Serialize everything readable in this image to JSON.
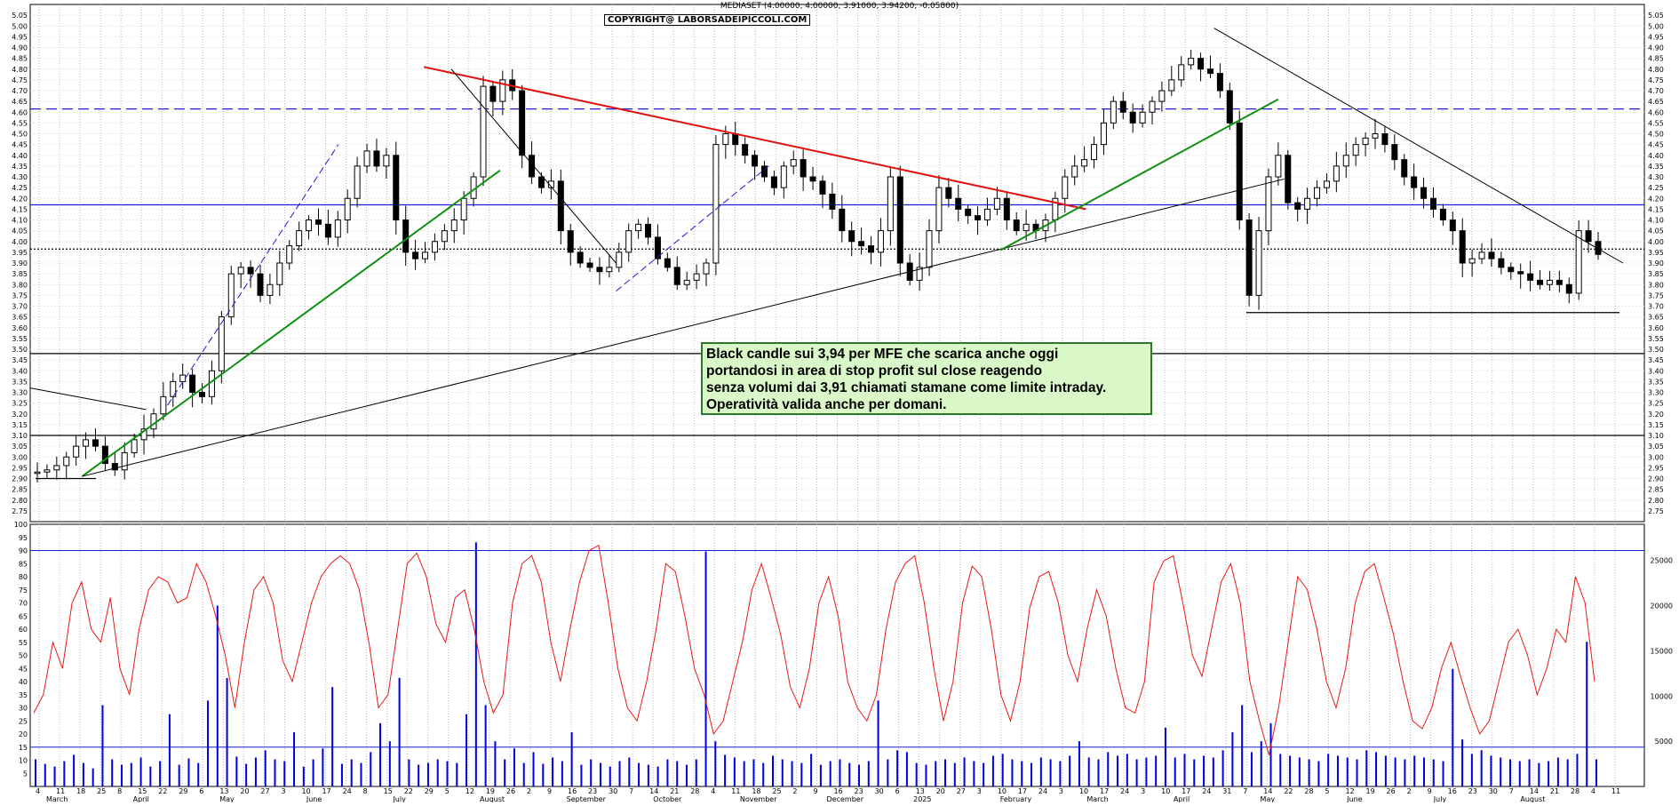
{
  "header": {
    "title": "MEDIASET (4.00000, 4.00000, 3.91000, 3.94200, -0.05800)",
    "copyright": "COPYRIGHT@ LABORSADEIPICCOLI.COM"
  },
  "comment": {
    "lines": [
      "Black candle sui 3,94 per MFE che scarica anche oggi",
      "portandosi in area di stop profit sul close reagendo",
      "senza volumi dai 3,91 chiamati stamane come limite intraday.",
      "Operatività valida anche per domani."
    ]
  },
  "colors": {
    "bullish_trendline": "#109010",
    "bearish_trendline": "#e01010",
    "support_line": "#1a1ad8",
    "indicator_line": "#e81818",
    "volume_bar": "#0000e0",
    "comment_bg": "#d9f7c7"
  },
  "chart_data": [
    {
      "type": "candlestick",
      "title": "MEDIASET",
      "ylim": [
        2.7,
        5.1
      ],
      "price_ticks": [
        "2.75",
        "2.80",
        "2.85",
        "2.90",
        "2.95",
        "3.00",
        "3.05",
        "3.10",
        "3.15",
        "3.20",
        "3.25",
        "3.30",
        "3.35",
        "3.40",
        "3.45",
        "3.50",
        "3.55",
        "3.60",
        "3.65",
        "3.70",
        "3.75",
        "3.80",
        "3.85",
        "3.90",
        "3.95",
        "4.00",
        "4.05",
        "4.10",
        "4.15",
        "4.20",
        "4.25",
        "4.30",
        "4.35",
        "4.40",
        "4.45",
        "4.50",
        "4.55",
        "4.60",
        "4.65",
        "4.70",
        "4.75",
        "4.80",
        "4.85",
        "4.90",
        "4.95",
        "5.00",
        "5.05"
      ],
      "x_date_ticks": [
        "4",
        "11",
        "18",
        "25",
        "8",
        "15",
        "22",
        "29",
        "6",
        "13",
        "20",
        "27",
        "3",
        "10",
        "17",
        "24",
        "8",
        "15",
        "22",
        "29",
        "5",
        "12",
        "19",
        "26",
        "2",
        "9",
        "16",
        "23",
        "30",
        "7",
        "14",
        "21",
        "28",
        "4",
        "11",
        "18",
        "25",
        "2",
        "9",
        "16",
        "23",
        "30",
        "6",
        "13",
        "20",
        "27",
        "3",
        "10",
        "17",
        "24",
        "3",
        "10",
        "17",
        "24",
        "3",
        "10",
        "17",
        "24",
        "31",
        "7",
        "14",
        "22",
        "28",
        "5",
        "12",
        "19",
        "26",
        "2",
        "9",
        "16",
        "23",
        "30",
        "7",
        "14",
        "21",
        "28",
        "4",
        "11"
      ],
      "x_months": [
        "March",
        "April",
        "May",
        "June",
        "July",
        "August",
        "September",
        "October",
        "November",
        "December",
        "2025",
        "February",
        "March",
        "April",
        "May",
        "June",
        "July",
        "August"
      ],
      "horizontal_levels": [
        {
          "value": 4.615,
          "style": "dashed",
          "color": "#1a1ad8"
        },
        {
          "value": 4.17,
          "style": "solid",
          "color": "#1a1ad8"
        },
        {
          "value": 3.965,
          "style": "dotted",
          "color": "#000000"
        },
        {
          "value": 3.48,
          "style": "solid",
          "color": "#000000"
        },
        {
          "value": 3.1,
          "style": "solid",
          "color": "#000000"
        },
        {
          "value": 2.9,
          "style": "solid",
          "color": "#000000"
        },
        {
          "value": 3.67,
          "style": "solid",
          "color": "#000000"
        }
      ],
      "trendlines": [
        {
          "color": "#e01010",
          "from": [
            "Jul 8 2024",
            4.81
          ],
          "to": [
            "Feb 10 2025",
            4.15
          ]
        },
        {
          "color": "#109010",
          "from": [
            "Mar 18 2024",
            2.91
          ],
          "to": [
            "Aug 2 2024",
            4.33
          ]
        },
        {
          "color": "#000000",
          "from": [
            "Mar 18 2024",
            2.91
          ],
          "to": [
            "Apr 16 2025",
            4.29
          ]
        },
        {
          "color": "#000000",
          "from": [
            "Mar 24 2025",
            4.99
          ],
          "to": [
            "Aug 5 2025",
            3.9
          ]
        },
        {
          "color": "#000000",
          "from": [
            "Jul 17 2024",
            4.8
          ],
          "to": [
            "Sep 9 2024",
            3.9
          ]
        },
        {
          "color": "#109010",
          "from": [
            "Jan 13 2025",
            3.96
          ],
          "to": [
            "Apr 14 2025",
            4.66
          ]
        },
        {
          "color": "#000000",
          "from": [
            "Mar 1 2024",
            3.32
          ],
          "to": [
            "Apr 8 2024",
            3.22
          ]
        }
      ],
      "close_series": [
        2.93,
        2.94,
        2.96,
        3.0,
        3.05,
        3.08,
        3.05,
        2.97,
        2.94,
        3.02,
        3.08,
        3.13,
        3.2,
        3.28,
        3.35,
        3.38,
        3.3,
        3.28,
        3.4,
        3.65,
        3.85,
        3.88,
        3.85,
        3.75,
        3.8,
        3.9,
        3.98,
        4.05,
        4.1,
        4.08,
        4.02,
        4.1,
        4.2,
        4.35,
        4.42,
        4.35,
        4.4,
        4.1,
        3.95,
        3.92,
        3.95,
        4.0,
        4.05,
        4.1,
        4.2,
        4.3,
        4.72,
        4.65,
        4.75,
        4.7,
        4.4,
        4.3,
        4.25,
        4.28,
        4.05,
        3.95,
        3.9,
        3.88,
        3.86,
        3.88,
        3.95,
        4.05,
        4.08,
        4.02,
        3.92,
        3.88,
        3.8,
        3.82,
        3.85,
        3.9,
        4.45,
        4.5,
        4.45,
        4.4,
        4.35,
        4.3,
        4.25,
        4.35,
        4.38,
        4.3,
        4.28,
        4.22,
        4.15,
        4.05,
        4.0,
        3.98,
        3.95,
        4.05,
        4.3,
        3.9,
        3.82,
        3.88,
        4.05,
        4.25,
        4.2,
        4.15,
        4.12,
        4.1,
        4.15,
        4.2,
        4.1,
        4.05,
        4.08,
        4.05,
        4.1,
        4.2,
        4.3,
        4.35,
        4.38,
        4.45,
        4.55,
        4.65,
        4.6,
        4.55,
        4.6,
        4.65,
        4.7,
        4.75,
        4.82,
        4.85,
        4.8,
        4.78,
        4.7,
        4.55,
        4.1,
        3.75,
        4.05,
        4.3,
        4.4,
        4.18,
        4.15,
        4.2,
        4.25,
        4.28,
        4.35,
        4.4,
        4.45,
        4.48,
        4.5,
        4.45,
        4.38,
        4.3,
        4.25,
        4.2,
        4.15,
        4.1,
        4.05,
        3.9,
        3.92,
        3.95,
        3.92,
        3.88,
        3.86,
        3.85,
        3.82,
        3.8,
        3.82,
        3.8,
        3.76,
        4.05,
        4.0,
        3.94
      ]
    },
    {
      "type": "line",
      "title": "oscillator",
      "ylim": [
        0,
        100
      ],
      "y_ticks": [
        "5",
        "10",
        "15",
        "20",
        "25",
        "30",
        "35",
        "40",
        "45",
        "50",
        "55",
        "60",
        "65",
        "70",
        "75",
        "80",
        "85",
        "90",
        "95",
        "100"
      ],
      "reference_levels": [
        90,
        15
      ],
      "values": [
        28,
        35,
        55,
        45,
        70,
        78,
        60,
        55,
        72,
        45,
        35,
        60,
        75,
        80,
        78,
        70,
        72,
        85,
        78,
        65,
        50,
        30,
        55,
        75,
        80,
        70,
        48,
        40,
        55,
        70,
        80,
        85,
        88,
        85,
        75,
        55,
        30,
        35,
        60,
        85,
        89,
        80,
        62,
        55,
        72,
        75,
        60,
        40,
        28,
        35,
        70,
        85,
        88,
        78,
        55,
        40,
        60,
        78,
        90,
        92,
        70,
        45,
        30,
        25,
        40,
        60,
        85,
        82,
        65,
        45,
        35,
        20,
        25,
        40,
        55,
        75,
        85,
        72,
        58,
        38,
        30,
        45,
        70,
        80,
        65,
        40,
        30,
        25,
        35,
        60,
        78,
        85,
        88,
        70,
        45,
        25,
        40,
        70,
        84,
        80,
        60,
        35,
        25,
        40,
        68,
        80,
        82,
        70,
        50,
        40,
        60,
        75,
        65,
        45,
        30,
        28,
        40,
        78,
        86,
        88,
        70,
        50,
        42,
        60,
        78,
        85,
        70,
        40,
        25,
        12,
        30,
        55,
        80,
        75,
        60,
        40,
        30,
        45,
        70,
        82,
        85,
        72,
        58,
        40,
        25,
        22,
        30,
        45,
        55,
        42,
        30,
        20,
        25,
        40,
        55,
        60,
        50,
        35,
        45,
        60,
        55,
        80,
        70,
        40
      ]
    },
    {
      "type": "bar",
      "title": "volume",
      "ylim": [
        0,
        29000
      ],
      "y_ticks": [
        "5000",
        "10000",
        "15000",
        "20000",
        "25000"
      ],
      "reference_level": 4500,
      "values": [
        3000,
        2500,
        2200,
        2800,
        3500,
        2600,
        2000,
        9000,
        3000,
        2400,
        2600,
        3200,
        2200,
        2800,
        8000,
        2400,
        3100,
        2600,
        9500,
        20000,
        12000,
        3300,
        2500,
        3200,
        4000,
        3000,
        2800,
        6000,
        2200,
        3000,
        4200,
        11000,
        2500,
        3000,
        2600,
        3800,
        7000,
        5000,
        12000,
        3000,
        2400,
        2600,
        3000,
        2800,
        2600,
        8000,
        27000,
        9000,
        5000,
        3000,
        4200,
        2600,
        3800,
        2500,
        3200,
        2800,
        6000,
        2400,
        3000,
        2600,
        2200,
        2800,
        3200,
        2600,
        2400,
        2200,
        3000,
        2800,
        2400,
        3000,
        26000,
        5000,
        3500,
        3200,
        2800,
        3000,
        2600,
        3400,
        3000,
        2800,
        2600,
        3600,
        2400,
        2800,
        3000,
        2600,
        2400,
        2800,
        9500,
        3000,
        4000,
        3800,
        2600,
        2400,
        2800,
        3000,
        2600,
        3200,
        2800,
        2600,
        3400,
        3600,
        3000,
        2800,
        2600,
        3200,
        3000,
        2800,
        3400,
        5000,
        3200,
        3000,
        3800,
        3400,
        3600,
        3000,
        3200,
        3400,
        6500,
        3200,
        3600,
        3000,
        3400,
        3200,
        4000,
        6000,
        9000,
        3800,
        5000,
        7000,
        3600,
        3400,
        3200,
        3000,
        2800,
        3600,
        3400,
        3200,
        3000,
        4000,
        3800,
        3400,
        3200,
        3000,
        3400,
        3200,
        3000,
        2800,
        13000,
        5200,
        3600,
        4000,
        3400,
        3200,
        3000,
        2800,
        3000,
        2600,
        2800,
        3200,
        3000,
        3600,
        16000,
        3000
      ]
    }
  ]
}
